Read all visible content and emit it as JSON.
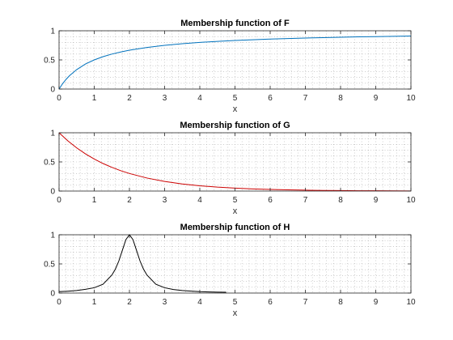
{
  "chart_data": [
    {
      "type": "line",
      "title": "Membership function of F",
      "xlabel": "x",
      "ylabel": "",
      "xlim": [
        0,
        10
      ],
      "ylim": [
        0,
        1
      ],
      "xticks": [
        "0",
        "1",
        "2",
        "3",
        "4",
        "5",
        "6",
        "7",
        "8",
        "9",
        "10"
      ],
      "yticks": [
        "0",
        "0.5",
        "1"
      ],
      "grid": "dotted",
      "color": "#0072BD",
      "series": [
        {
          "x": [
            0,
            0.1,
            0.2,
            0.3,
            0.5,
            0.75,
            1,
            1.25,
            1.5,
            1.75,
            2,
            2.5,
            3,
            3.5,
            4,
            4.5,
            5,
            5.5,
            6,
            6.5,
            7,
            7.5,
            8,
            8.5,
            9,
            9.5,
            10
          ],
          "values": [
            0,
            0.091,
            0.167,
            0.231,
            0.333,
            0.429,
            0.5,
            0.556,
            0.6,
            0.636,
            0.667,
            0.714,
            0.75,
            0.778,
            0.8,
            0.818,
            0.833,
            0.846,
            0.857,
            0.867,
            0.875,
            0.882,
            0.889,
            0.895,
            0.9,
            0.905,
            0.909
          ]
        }
      ]
    },
    {
      "type": "line",
      "title": "Membership function of G",
      "xlabel": "x",
      "ylabel": "",
      "xlim": [
        0,
        10
      ],
      "ylim": [
        0,
        1
      ],
      "xticks": [
        "0",
        "1",
        "2",
        "3",
        "4",
        "5",
        "6",
        "7",
        "8",
        "9",
        "10"
      ],
      "yticks": [
        "0",
        "0.5",
        "1"
      ],
      "grid": "dotted",
      "color": "#CC0000",
      "series": [
        {
          "x": [
            0,
            0.25,
            0.5,
            0.75,
            1,
            1.25,
            1.5,
            1.75,
            2,
            2.5,
            3,
            3.5,
            4,
            4.5,
            5,
            5.5,
            6,
            6.5,
            7,
            7.5,
            8,
            8.5,
            9,
            9.5,
            10
          ],
          "values": [
            1,
            0.861,
            0.741,
            0.638,
            0.549,
            0.472,
            0.407,
            0.35,
            0.301,
            0.223,
            0.165,
            0.122,
            0.091,
            0.067,
            0.05,
            0.037,
            0.027,
            0.02,
            0.015,
            0.011,
            0.008,
            0.006,
            0.005,
            0.003,
            0.002
          ]
        }
      ]
    },
    {
      "type": "line",
      "title": "Membership function of H",
      "xlabel": "x",
      "ylabel": "",
      "xlim": [
        0,
        10
      ],
      "ylim": [
        0,
        1
      ],
      "xticks": [
        "0",
        "1",
        "2",
        "3",
        "4",
        "5",
        "6",
        "7",
        "8",
        "9",
        "10"
      ],
      "yticks": [
        "0",
        "0.5",
        "1"
      ],
      "grid": "dotted",
      "color": "#000000",
      "series": [
        {
          "x": [
            0,
            0.25,
            0.5,
            0.75,
            1,
            1.25,
            1.5,
            1.6,
            1.7,
            1.8,
            1.9,
            2,
            2.1,
            2.2,
            2.3,
            2.4,
            2.5,
            2.75,
            3,
            3.25,
            3.5,
            3.75,
            4,
            4.25,
            4.5,
            4.75
          ],
          "values": [
            0.024,
            0.032,
            0.043,
            0.064,
            0.091,
            0.151,
            0.308,
            0.41,
            0.552,
            0.735,
            0.917,
            1,
            0.917,
            0.735,
            0.552,
            0.41,
            0.308,
            0.151,
            0.091,
            0.061,
            0.043,
            0.033,
            0.024,
            0.019,
            0.016,
            0.013
          ]
        }
      ]
    }
  ]
}
